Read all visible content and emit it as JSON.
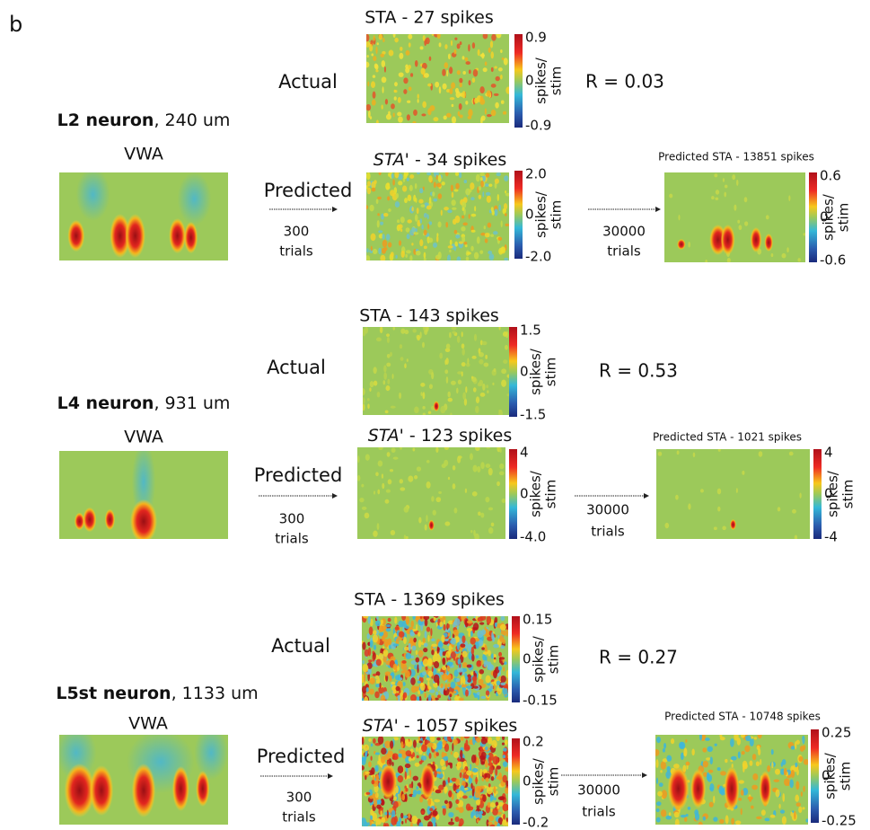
{
  "panel_label": "b",
  "rows": [
    {
      "neuron": {
        "name": "L2 neuron",
        "depth": ", 240 um"
      },
      "vwa": "VWA",
      "actual": {
        "label": "Actual",
        "title": "STA - 27 spikes",
        "colorbar": {
          "max": "0.9",
          "mid": "0",
          "min": "-0.9",
          "unit_top": "spikes/",
          "unit_bottom": "stim"
        },
        "r": "R = 0.03"
      },
      "predicted": {
        "label": "Predicted",
        "trials": "300",
        "trials_unit": "trials",
        "title_italic": "STA'",
        "title_rest": " - 34 spikes",
        "colorbar": {
          "max": "2.0",
          "mid": "0",
          "min": "-2.0",
          "unit_top": "spikes/",
          "unit_bottom": "stim"
        }
      },
      "extended": {
        "trials": "30000",
        "trials_unit": "trials",
        "title": "Predicted STA - 13851 spikes",
        "colorbar": {
          "max": "0.6",
          "mid": "0",
          "min": "-0.6",
          "unit_top": "spikes/",
          "unit_bottom": "stim"
        }
      }
    },
    {
      "neuron": {
        "name": "L4 neuron",
        "depth": ", 931 um"
      },
      "vwa": "VWA",
      "actual": {
        "label": "Actual",
        "title": "STA - 143 spikes",
        "colorbar": {
          "max": "1.5",
          "mid": "0",
          "min": "-1.5",
          "unit_top": "spikes/",
          "unit_bottom": "stim"
        },
        "r": "R = 0.53"
      },
      "predicted": {
        "label": "Predicted",
        "trials": "300",
        "trials_unit": "trials",
        "title_italic": "STA'",
        "title_rest": " - 123 spikes",
        "colorbar": {
          "max": "4",
          "mid": "0",
          "min": "-4.0",
          "unit_top": "spikes/",
          "unit_bottom": "stim"
        }
      },
      "extended": {
        "trials": "30000",
        "trials_unit": "trials",
        "title": "Predicted STA - 1021 spikes",
        "colorbar": {
          "max": "4",
          "mid": "0",
          "min": "-4",
          "unit_top": "spikes/",
          "unit_bottom": "stim"
        }
      }
    },
    {
      "neuron": {
        "name": "L5st neuron",
        "depth": ", 1133 um"
      },
      "vwa": "VWA",
      "actual": {
        "label": "Actual",
        "title": "STA - 1369 spikes",
        "colorbar": {
          "max": "0.15",
          "mid": "0",
          "min": "-0.15",
          "unit_top": "spikes/",
          "unit_bottom": "stim"
        },
        "r": "R = 0.27"
      },
      "predicted": {
        "label": "Predicted",
        "trials": "300",
        "trials_unit": "trials",
        "title_italic": "STA'",
        "title_rest": " - 1057 spikes",
        "colorbar": {
          "max": "0.2",
          "mid": "0",
          "min": "-0.2",
          "unit_top": "spikes/",
          "unit_bottom": "stim"
        }
      },
      "extended": {
        "trials": "30000",
        "trials_unit": "trials",
        "title": "Predicted STA - 10748 spikes",
        "colorbar": {
          "max": "0.25",
          "mid": "0",
          "min": "-0.25",
          "unit_top": "spikes/",
          "unit_bottom": "stim"
        }
      }
    }
  ]
}
